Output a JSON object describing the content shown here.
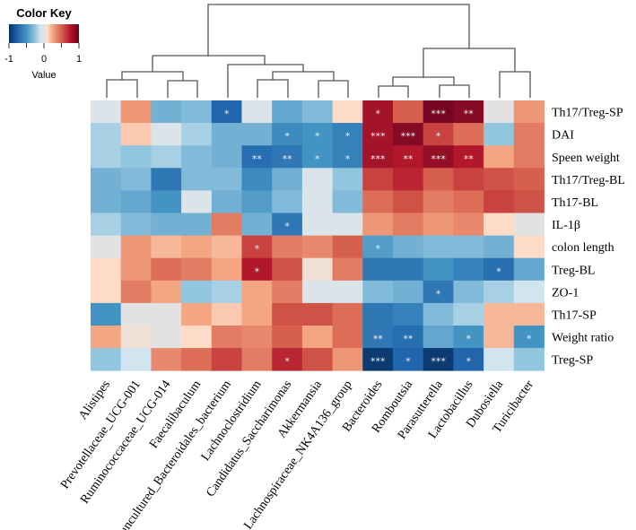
{
  "chart_data": {
    "type": "heatmap",
    "title": "",
    "color_key": {
      "title": "Color Key",
      "xlabel": "Value",
      "ticks": [
        "-1",
        "0",
        "1"
      ],
      "range": [
        -1,
        1
      ],
      "colors": [
        "#053061",
        "#2166ac",
        "#4393c3",
        "#92c5de",
        "#d1e5f0",
        "#e2e2e2",
        "#fddbc7",
        "#f4a582",
        "#d6604d",
        "#b2182b",
        "#67001f"
      ]
    },
    "columns": [
      "Alistipes",
      "Prevotellaceae_UCG-001",
      "Ruminococcaceae_UCG-014",
      "Faecalibaculum",
      "uncultured_Bacteroidales_bacterium",
      "Lachnoclostridium",
      "Candidatus_Saccharimonas",
      "Akkermansia",
      "Lachnospiraceae_NK4A136_group",
      "Bacteroides",
      "Romboutsia",
      "Parasutterella",
      "Lactobacillus",
      "Dubosiella",
      "Turicibacter"
    ],
    "rows": [
      "Th17/Treg-SP",
      "DAI",
      "Speen weight",
      "Th17/Treg-BL",
      "Th17-BL",
      "IL-1β",
      "colon length",
      "Treg-BL",
      "ZO-1",
      "Th17-SP",
      "Weight ratio",
      "Treg-SP"
    ],
    "values": [
      [
        -0.05,
        0.3,
        -0.35,
        -0.3,
        -0.75,
        -0.05,
        -0.4,
        -0.3,
        0.1,
        0.8,
        0.5,
        0.95,
        0.9,
        0.0,
        0.3
      ],
      [
        -0.2,
        0.15,
        -0.05,
        -0.2,
        -0.35,
        -0.35,
        -0.55,
        -0.5,
        -0.6,
        0.8,
        0.9,
        0.6,
        0.45,
        -0.25,
        0.4
      ],
      [
        -0.2,
        -0.25,
        -0.2,
        -0.3,
        -0.35,
        -0.7,
        -0.65,
        -0.5,
        -0.6,
        0.8,
        0.75,
        0.85,
        0.75,
        0.25,
        0.4
      ],
      [
        -0.35,
        -0.3,
        -0.65,
        -0.3,
        -0.3,
        -0.55,
        -0.35,
        -0.05,
        -0.25,
        0.6,
        0.7,
        0.5,
        0.6,
        0.55,
        0.5
      ],
      [
        -0.35,
        -0.4,
        -0.5,
        -0.05,
        -0.35,
        -0.45,
        -0.3,
        -0.05,
        -0.3,
        0.45,
        0.55,
        0.4,
        0.45,
        0.6,
        0.55
      ],
      [
        -0.2,
        -0.3,
        -0.35,
        -0.35,
        0.4,
        -0.35,
        -0.65,
        -0.05,
        -0.05,
        0.3,
        0.4,
        0.3,
        0.35,
        0.1,
        0.0
      ],
      [
        0.0,
        0.3,
        0.2,
        0.25,
        0.2,
        0.6,
        0.4,
        0.35,
        0.5,
        -0.45,
        -0.35,
        -0.3,
        -0.3,
        -0.35,
        0.1
      ],
      [
        0.1,
        0.3,
        0.45,
        0.4,
        0.25,
        0.75,
        0.55,
        0.05,
        0.4,
        -0.65,
        -0.65,
        -0.5,
        -0.6,
        -0.7,
        -0.4
      ],
      [
        0.1,
        0.4,
        0.25,
        -0.25,
        -0.2,
        0.25,
        0.4,
        -0.05,
        -0.05,
        -0.3,
        -0.35,
        -0.65,
        -0.3,
        -0.2,
        -0.1
      ],
      [
        -0.5,
        0.0,
        0.0,
        0.25,
        0.15,
        0.25,
        0.55,
        0.55,
        0.45,
        -0.65,
        -0.6,
        -0.3,
        -0.2,
        0.2,
        0.2
      ],
      [
        0.25,
        0.05,
        0.0,
        0.1,
        0.4,
        0.35,
        0.5,
        0.25,
        0.45,
        -0.65,
        -0.7,
        -0.4,
        -0.5,
        0.2,
        -0.5
      ],
      [
        -0.25,
        -0.1,
        0.35,
        0.45,
        0.6,
        0.4,
        0.7,
        0.55,
        0.3,
        -0.95,
        -0.75,
        -0.95,
        -0.75,
        -0.1,
        -0.25
      ]
    ],
    "significance": [
      [
        "",
        "",
        "",
        "",
        "*",
        "",
        "",
        "",
        "",
        "*",
        "",
        "***",
        "**",
        "",
        ""
      ],
      [
        "",
        "",
        "",
        "",
        "",
        "",
        "*",
        "*",
        "*",
        "***",
        "***",
        "*",
        "",
        "",
        ""
      ],
      [
        "",
        "",
        "",
        "",
        "",
        "**",
        "**",
        "*",
        "*",
        "***",
        "**",
        "***",
        "**",
        "",
        ""
      ],
      [
        "",
        "",
        "",
        "",
        "",
        "",
        "",
        "",
        "",
        "",
        "",
        "",
        "",
        "",
        ""
      ],
      [
        "",
        "",
        "",
        "",
        "",
        "",
        "",
        "",
        "",
        "",
        "",
        "",
        "",
        "",
        ""
      ],
      [
        "",
        "",
        "",
        "",
        "",
        "",
        "*",
        "",
        "",
        "",
        "",
        "",
        "",
        "",
        ""
      ],
      [
        "",
        "",
        "",
        "",
        "",
        "*",
        "",
        "",
        "",
        "*",
        "",
        "",
        "",
        "",
        ""
      ],
      [
        "",
        "",
        "",
        "",
        "",
        "*",
        "",
        "",
        "",
        "",
        "",
        "",
        "",
        "*",
        ""
      ],
      [
        "",
        "",
        "",
        "",
        "",
        "",
        "",
        "",
        "",
        "",
        "",
        "*",
        "",
        "",
        ""
      ],
      [
        "",
        "",
        "",
        "",
        "",
        "",
        "",
        "",
        "",
        "",
        "",
        "",
        "",
        "",
        ""
      ],
      [
        "",
        "",
        "",
        "",
        "",
        "",
        "",
        "",
        "",
        "**",
        "**",
        "",
        "*",
        "",
        "*"
      ],
      [
        "",
        "",
        "",
        "",
        "",
        "",
        "*",
        "",
        "",
        "***",
        "*",
        "***",
        "*",
        "",
        ""
      ]
    ],
    "column_dendrogram": true
  }
}
